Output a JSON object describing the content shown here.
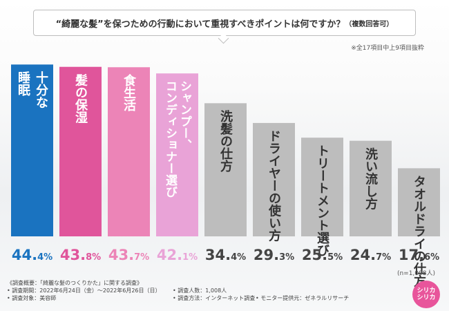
{
  "title": "“綺麗な髪”を保つための行動において重視すべきポイントは何ですか？",
  "title_sub": "（複数回答可）",
  "note": "※全17項目中上9項目抜粋",
  "n_label": "(n=1,008人)",
  "chart_data": {
    "type": "bar",
    "title": "“綺麗な髪”を保つための行動において重視すべきポイントは何ですか？（複数回答可）",
    "unit": "%",
    "xlabel": "",
    "ylabel": "",
    "ylim": [
      0,
      50
    ],
    "categories": [
      "十分な睡眠",
      "髪の保湿",
      "食生活",
      "シャンプー、コンディショナー選び",
      "洗髪の仕方",
      "ドライヤーの使い方",
      "トリートメント選び",
      "洗い流し方",
      "タオルドライの仕方"
    ],
    "label_lines": [
      [
        "十分な",
        "睡眠"
      ],
      [
        "髪の保湿"
      ],
      [
        "食生活"
      ],
      [
        "シャンプー、",
        "コンディショナー選び"
      ],
      [
        "洗髪の仕方"
      ],
      [
        "ドライヤーの使い方"
      ],
      [
        "トリートメント選び"
      ],
      [
        "洗い流し方"
      ],
      [
        "タオルドライの仕方"
      ]
    ],
    "values": [
      44.4,
      43.8,
      43.7,
      42.1,
      34.4,
      29.3,
      25.5,
      24.7,
      17.6
    ],
    "value_labels": [
      [
        "44.",
        "4%"
      ],
      [
        "43.",
        "8%"
      ],
      [
        "43.",
        "7%"
      ],
      [
        "42.",
        "1%"
      ],
      [
        "34.",
        "4%"
      ],
      [
        "29.",
        "3%"
      ],
      [
        "25.",
        "5%"
      ],
      [
        "24.",
        "7%"
      ],
      [
        "17.",
        "6%"
      ]
    ],
    "bar_colors": [
      "#1a73c0",
      "#e0559b",
      "#ec84b7",
      "#e9a3d7",
      "#bdbdbd",
      "#bdbdbd",
      "#bdbdbd",
      "#bdbdbd",
      "#bdbdbd"
    ],
    "label_colors": [
      "#1a73c0",
      "#e0559b",
      "#ec84b7",
      "#e9a3d7",
      "#444444",
      "#444444",
      "#444444",
      "#444444",
      "#444444"
    ]
  },
  "footer": {
    "heading": "《調査概要：「綺麗な髪のつくりかた」に関する調査》",
    "period": "• 調査期間：2022年6月24日（金）～2022年6月26日（日）",
    "people": "• 調査人数：1,008人",
    "target": "• 調査対象：美容師",
    "method": "• 調査方法：インターネット調査",
    "monitor": "• モニター提供元：ゼネラルリサーチ"
  },
  "logo": {
    "line1": "シリカ",
    "line2": "シリカ"
  }
}
